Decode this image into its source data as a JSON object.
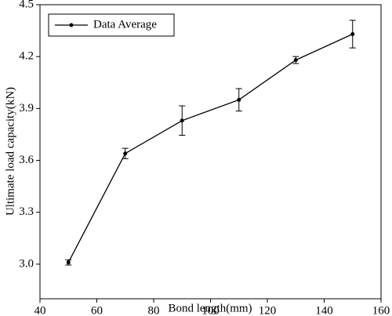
{
  "chart_data": {
    "type": "line",
    "x_label": "Bond length(mm)",
    "y_label": "Ultimate load capacity(kN)",
    "x": [
      50,
      70,
      90,
      110,
      130,
      150
    ],
    "series": [
      {
        "name": "Data Average",
        "color": "#000000",
        "values": [
          3.01,
          3.64,
          3.83,
          3.95,
          4.18,
          4.33
        ],
        "errors": [
          0.015,
          0.03,
          0.085,
          0.065,
          0.02,
          0.08
        ]
      }
    ],
    "xlim": [
      40,
      160
    ],
    "xticks": [
      40,
      60,
      80,
      100,
      120,
      140,
      160
    ],
    "ylim": [
      2.8,
      4.5
    ],
    "yticks": [
      {
        "value": 3,
        "label": "3.0"
      },
      3.3,
      3.6,
      3.9,
      4.2,
      4.5
    ],
    "legend": "top-left",
    "grid": false
  }
}
